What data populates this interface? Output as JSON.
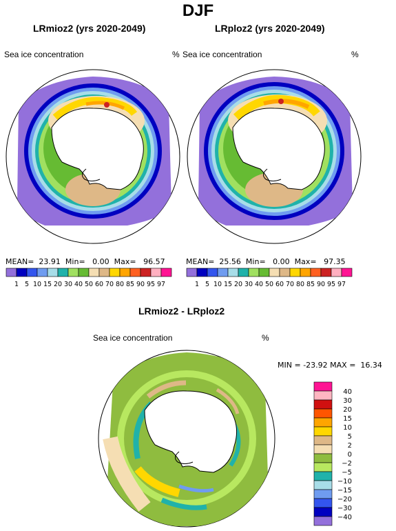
{
  "main_title": "DJF",
  "panels": [
    {
      "title": "LRmioz2 (yrs 2020-2049)",
      "variable": "Sea ice concentration",
      "units": "%",
      "mean_label": "MEAN=",
      "mean": "23.91",
      "min_label": "Min=",
      "min": "0.00",
      "max_label": "Max=",
      "max": "96.57"
    },
    {
      "title": "LRploz2 (yrs 2020-2049)",
      "variable": "Sea ice concentration",
      "units": "%",
      "mean_label": "MEAN=",
      "mean": "25.56",
      "min_label": "Min=",
      "min": "0.00",
      "max_label": "Max=",
      "max": "97.35"
    }
  ],
  "abs_scale": {
    "colors": [
      "#9370db",
      "#0000c0",
      "#3355ee",
      "#6f9cf0",
      "#a8dde8",
      "#20b2aa",
      "#a0e060",
      "#66bb33",
      "#f5deb3",
      "#deb887",
      "#ffd700",
      "#ffa500",
      "#ff6020",
      "#cc2222",
      "#ffb0c0",
      "#ff1493"
    ],
    "labels": [
      "1",
      "5",
      "10",
      "15",
      "20",
      "30",
      "40",
      "50",
      "60",
      "70",
      "80",
      "85",
      "90",
      "95",
      "97"
    ]
  },
  "diff_panel": {
    "title": "LRmioz2 - LRploz2",
    "variable": "Sea ice concentration",
    "units": "%",
    "min_label": "MIN =",
    "min": "-23.92",
    "max_label": "MAX =",
    "max": "16.34"
  },
  "diff_scale": {
    "colors": [
      "#ff1493",
      "#ffb6c1",
      "#d01010",
      "#ff5500",
      "#ffa500",
      "#ffd700",
      "#deb887",
      "#f5deb3",
      "#8fbc3f",
      "#b8e860",
      "#20b2aa",
      "#a8dde8",
      "#6f9cf0",
      "#3355ee",
      "#0000c0",
      "#9370db"
    ],
    "labels": [
      "40",
      "30",
      "20",
      "15",
      "10",
      "5",
      "2",
      "0",
      "−2",
      "−5",
      "−10",
      "−15",
      "−20",
      "−30",
      "−40"
    ]
  }
}
